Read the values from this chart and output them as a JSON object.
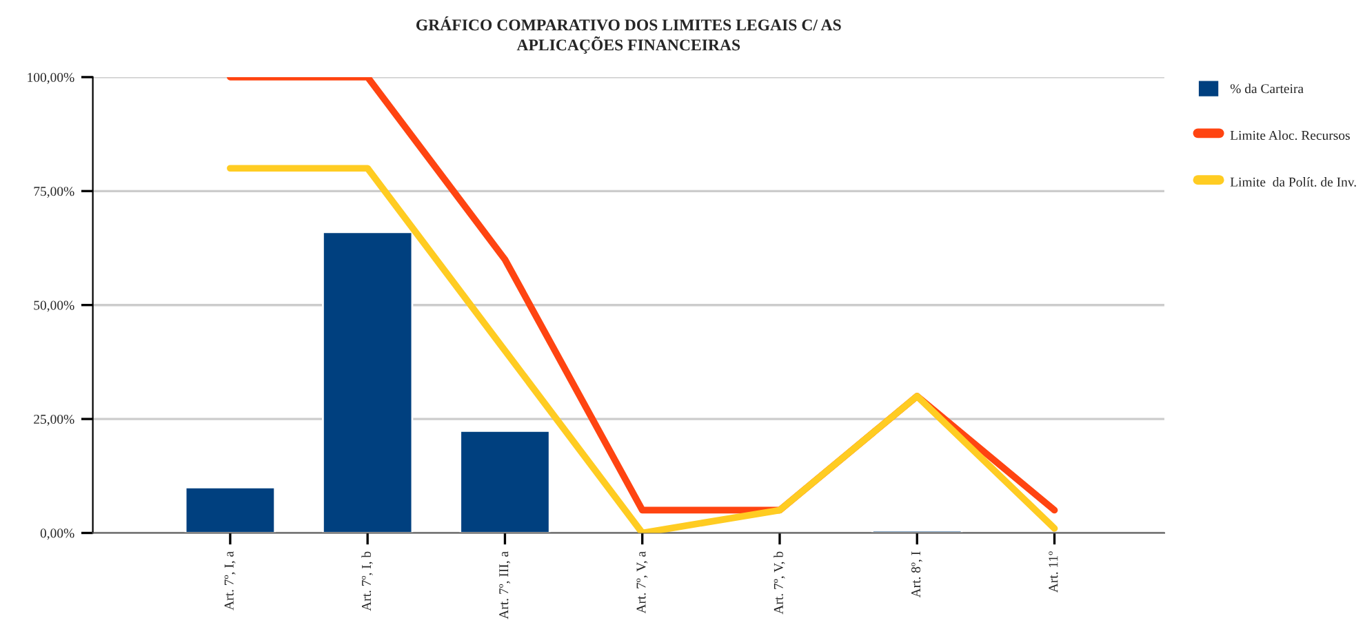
{
  "chart_data": {
    "type": "bar",
    "title": "GRÁFICO COMPARATIVO DOS LIMITES LEGAIS C/ AS\nAPLICAÇÕES FINANCEIRAS",
    "categories": [
      "Art. 7º, I, a",
      "Art. 7º, I, b",
      "Art. 7º, III, a",
      "Art. 7º, V, a",
      "Art. 7º, V, b",
      "Art. 8º, I",
      "Art. 11º"
    ],
    "series": [
      {
        "name": "% da Carteira",
        "color": "#00407f",
        "values": [
          10,
          66,
          22.4,
          null,
          null,
          0.5,
          null
        ]
      },
      {
        "name": "Limite Aloc. Recursos",
        "type": "line",
        "color": "#ff4411",
        "values": [
          100,
          100,
          60,
          5,
          5,
          30,
          5
        ]
      },
      {
        "name": "Limite  da Polít. de Inv.",
        "type": "line",
        "color": "#ffcc22",
        "values": [
          80,
          80,
          40,
          0,
          5,
          30,
          1
        ]
      }
    ],
    "ylim": [
      0,
      100
    ],
    "yticks": [
      {
        "value": 0,
        "label": "0,00%"
      },
      {
        "value": 25,
        "label": "25,00%"
      },
      {
        "value": 50,
        "label": "50,00%"
      },
      {
        "value": 75,
        "label": "75,00%"
      },
      {
        "value": 100,
        "label": "100,00%"
      }
    ],
    "grid": "y",
    "legend": "right",
    "marker": "none",
    "line_style": "solid"
  }
}
